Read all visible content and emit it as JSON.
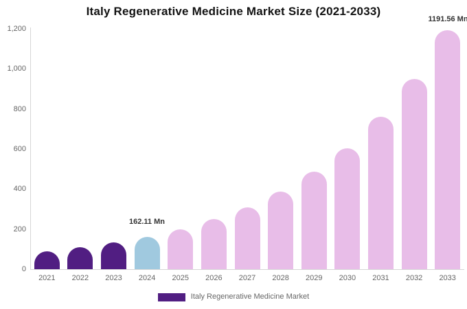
{
  "title": "Italy Regenerative Medicine Market Size (2021-2033)",
  "annotations": {
    "value_2024": "162.11 Mn",
    "value_2033": "1191.56 Mn"
  },
  "legend": {
    "label": "Italy Regenerative Medicine Market"
  },
  "colors": {
    "historical_purple": "#511E82",
    "base_year_blue": "#A0C9DF",
    "forecast_pink": "#E8BDE8",
    "axis_line": "#D6D6D6",
    "tick_text": "#666666",
    "annotation_text": "#333333",
    "title_text": "#111111"
  },
  "chart_data": {
    "type": "bar",
    "title": "Italy Regenerative Medicine Market Size (2021-2033)",
    "categories": [
      "2021",
      "2022",
      "2023",
      "2024",
      "2025",
      "2026",
      "2027",
      "2028",
      "2029",
      "2030",
      "2031",
      "2032",
      "2033"
    ],
    "values": [
      90,
      110,
      133,
      162.11,
      200,
      250,
      310,
      388,
      487,
      605,
      760,
      950,
      1191.56
    ],
    "bar_colors": [
      "historical_purple",
      "historical_purple",
      "historical_purple",
      "base_year_blue",
      "forecast_pink",
      "forecast_pink",
      "forecast_pink",
      "forecast_pink",
      "forecast_pink",
      "forecast_pink",
      "forecast_pink",
      "forecast_pink",
      "forecast_pink"
    ],
    "data_labels": {
      "2024": "162.11 Mn",
      "2033": "1191.56 Mn"
    },
    "xlabel": "",
    "ylabel": "",
    "ylim": [
      0,
      1200
    ],
    "ytick_values": [
      0,
      200,
      400,
      600,
      800,
      1000,
      1200
    ],
    "ytick_labels": [
      "0",
      "200",
      "400",
      "600",
      "800",
      "1,000",
      "1,200"
    ],
    "grid": false,
    "legend_position": "bottom",
    "legend_entries": [
      "Italy Regenerative Medicine Market"
    ]
  }
}
